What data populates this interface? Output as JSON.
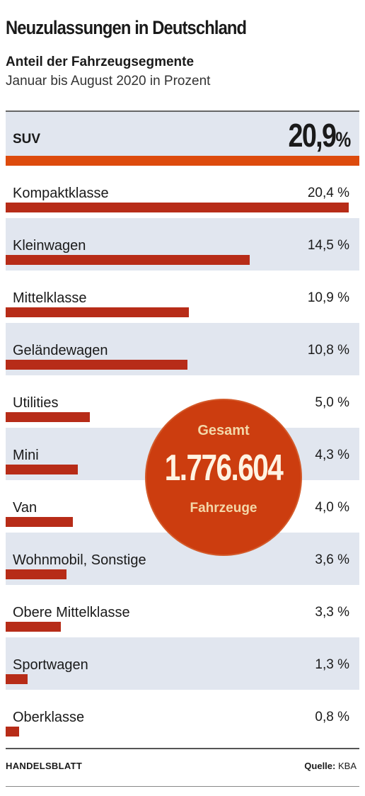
{
  "title": "Neuzulassungen in Deutschland",
  "subtitle": "Anteil der Fahrzeugsegmente",
  "note": "Januar bis August 2020 in Prozent",
  "chart_data": {
    "type": "bar",
    "orientation": "horizontal",
    "categories": [
      "SUV",
      "Kompaktklasse",
      "Kleinwagen",
      "Mittelklasse",
      "Geländewagen",
      "Utilities",
      "Mini",
      "Van",
      "Wohnmobil, Sonstige",
      "Obere Mittelklasse",
      "Sportwagen",
      "Oberklasse"
    ],
    "values": [
      20.9,
      20.4,
      14.5,
      10.9,
      10.8,
      5.0,
      4.3,
      4.0,
      3.6,
      3.3,
      1.3,
      0.8
    ],
    "value_labels": [
      "20,9",
      "20,4 %",
      "14,5 %",
      "10,9 %",
      "10,8 %",
      "5,0 %",
      "4,3 %",
      "4,0 %",
      "3,6 %",
      "3,3 %",
      "1,3 %",
      "0,8 %"
    ],
    "highlight_category": "SUV",
    "highlight_suffix": "%",
    "bar_color": "#b72c18",
    "highlight_color": "#dd4b0d",
    "row_shade_color": "#e1e6ef"
  },
  "badge": {
    "top": "Gesamt",
    "number": "1.776.604",
    "bottom": "Fahrzeuge",
    "color": "#cc3d0f"
  },
  "footer": {
    "publisher": "HANDELSBLATT",
    "source_label": "Quelle:",
    "source_value": "KBA"
  }
}
